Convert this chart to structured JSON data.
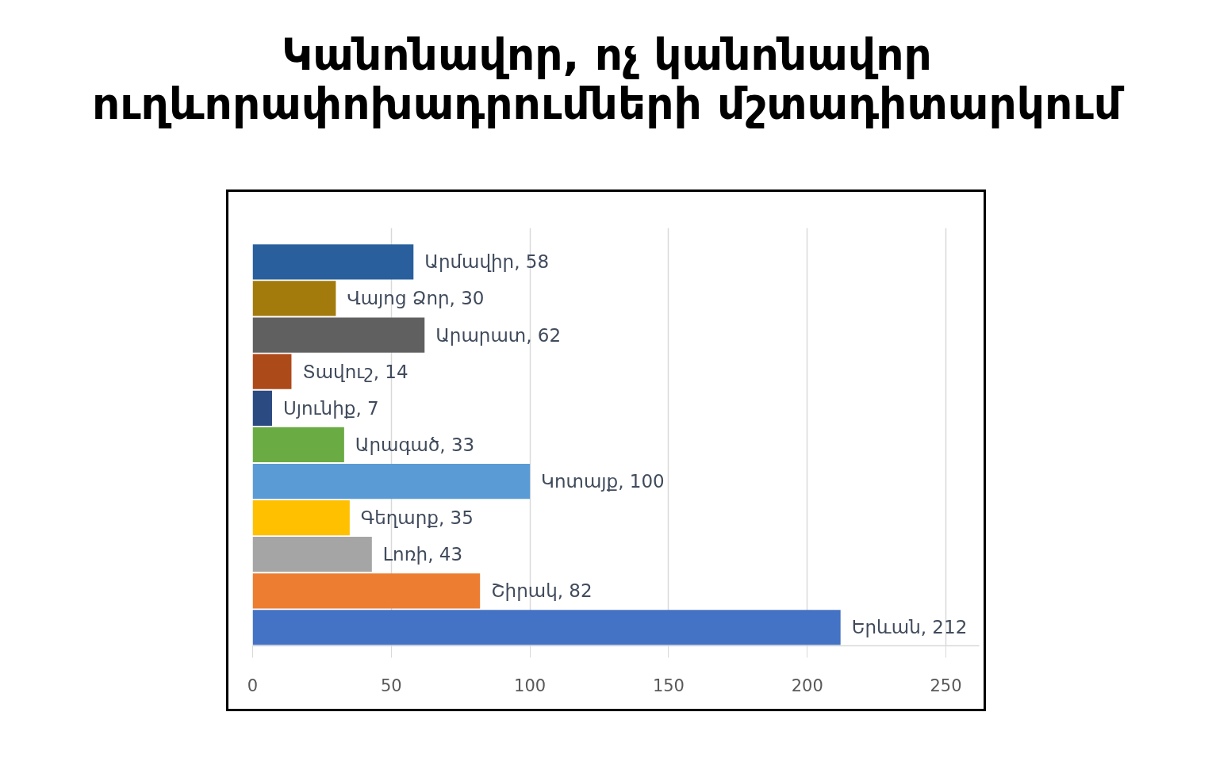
{
  "chart_data": {
    "type": "bar",
    "orientation": "horizontal",
    "title": "Կանոնավոր, ոչ կանոնավոր ուղևորափոխադրումների մշտադիտարկում",
    "categories": [
      null,
      null,
      null,
      null,
      null,
      null,
      null,
      null,
      null,
      null,
      null
    ],
    "values": [
      58,
      30,
      62,
      14,
      7,
      33,
      100,
      35,
      43,
      82,
      212
    ],
    "colors": [
      "#285f9c",
      "#a27b0c",
      "#606060",
      "#ad4a19",
      "#2b4a82",
      "#6aab43",
      "#5b9bd5",
      "#ffc000",
      "#a5a5a5",
      "#ed7d31",
      "#4472c4"
    ],
    "value_labels": [
      "Արմավիր, 58",
      "Վայոց Ձոր, 30",
      "Արարատ, 62",
      "Տավուշ, 14",
      "Սյունիք, 7",
      "Արագած, 33",
      "Կոտայք, 100",
      "Գեղարք, 35",
      "Լոռի, 43",
      "Շիրակ, 82",
      "Երևան, 212"
    ],
    "xlim": [
      0,
      262
    ],
    "xticks": [
      0,
      50,
      100,
      150,
      200,
      250
    ],
    "grid": "x",
    "tick_labels": "x"
  }
}
